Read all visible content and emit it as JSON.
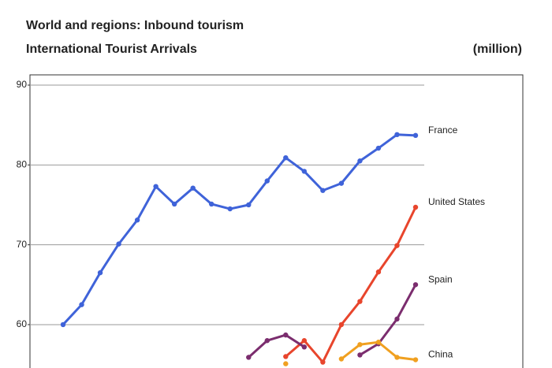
{
  "chart_data": {
    "type": "line",
    "title": "World and regions: Inbound tourism",
    "subtitle": "International Tourist Arrivals",
    "unit": "(million)",
    "categories": [
      null,
      null,
      null,
      null,
      null,
      null,
      null,
      null,
      null,
      null,
      null,
      null,
      null,
      null,
      null,
      null,
      null,
      null,
      null,
      null
    ],
    "series": [
      {
        "name": "France",
        "color": "#3f63d9",
        "values": [
          60.0,
          62.5,
          66.5,
          70.1,
          73.1,
          77.3,
          75.1,
          77.1,
          75.1,
          74.5,
          75.0,
          78.0,
          80.9,
          79.2,
          76.8,
          77.7,
          80.5,
          82.1,
          83.8,
          83.7
        ]
      },
      {
        "name": "United States",
        "color": "#e8452c",
        "values": [
          null,
          null,
          null,
          null,
          null,
          null,
          null,
          null,
          null,
          null,
          null,
          null,
          56.0,
          58.0,
          55.3,
          60.0,
          62.9,
          66.6,
          69.9,
          74.7
        ]
      },
      {
        "name": "Spain",
        "color": "#7b2d6e",
        "values": [
          null,
          null,
          null,
          null,
          null,
          null,
          null,
          null,
          null,
          null,
          55.9,
          58.0,
          58.7,
          57.2,
          null,
          null,
          56.2,
          57.6,
          60.7,
          65.0
        ]
      },
      {
        "name": "China",
        "color": "#f0a020",
        "values": [
          null,
          null,
          null,
          null,
          null,
          null,
          null,
          null,
          null,
          null,
          null,
          null,
          55.1,
          null,
          null,
          55.7,
          57.5,
          57.8,
          55.9,
          55.6
        ]
      }
    ],
    "ylim": [
      55,
      90
    ],
    "yticks": [
      60,
      70,
      80,
      90
    ],
    "grid": true
  }
}
